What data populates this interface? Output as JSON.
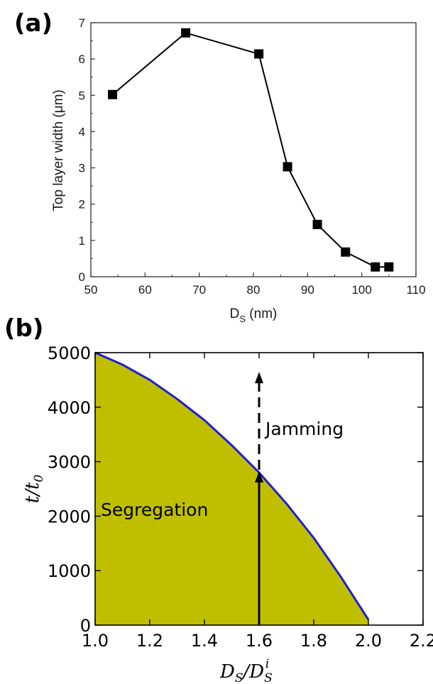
{
  "chart_data": [
    {
      "panel": "(a)",
      "type": "line",
      "xlabel_main": "D",
      "xlabel_sub": "S",
      "xlabel_unit": " (nm)",
      "ylabel": "Top layer width (μm)",
      "xlim": [
        50,
        110
      ],
      "ylim": [
        0,
        7
      ],
      "xticks": [
        50,
        60,
        70,
        80,
        90,
        100,
        110
      ],
      "yticks": [
        0,
        1,
        2,
        3,
        4,
        5,
        6,
        7
      ],
      "marker": "square",
      "series": [
        {
          "x": [
            54,
            67.5,
            81,
            86.3,
            91.8,
            97,
            102.5,
            105
          ],
          "y": [
            5.02,
            6.72,
            6.14,
            3.03,
            1.44,
            0.68,
            0.27,
            0.27
          ]
        }
      ],
      "colors": {
        "line": "#000000",
        "marker": "#000000"
      }
    },
    {
      "panel": "(b)",
      "type": "area",
      "xlabel": "D_S / D_S^i",
      "ylabel": "t / t_0",
      "xlim": [
        1.0,
        2.2
      ],
      "ylim": [
        0,
        5000
      ],
      "xticks": [
        "1.0",
        "1.2",
        "1.4",
        "1.6",
        "1.8",
        "2.0",
        "2.2"
      ],
      "yticks": [
        "0",
        "1000",
        "2000",
        "3000",
        "4000",
        "5000"
      ],
      "boundary": {
        "x": [
          1.0,
          1.1,
          1.2,
          1.3,
          1.4,
          1.5,
          1.6,
          1.7,
          1.8,
          1.9,
          2.0
        ],
        "y": [
          5000,
          4780,
          4500,
          4150,
          3760,
          3300,
          2800,
          2230,
          1600,
          880,
          100
        ]
      },
      "arrow": {
        "x": 1.6,
        "solid_to": 2800,
        "dashed_to": 4620
      },
      "annotations": {
        "below": "Segregation",
        "above": "Jamming"
      },
      "colors": {
        "fill": "#bfbf00",
        "boundary": "#1f1fcf",
        "arrow": "#000000"
      }
    }
  ]
}
